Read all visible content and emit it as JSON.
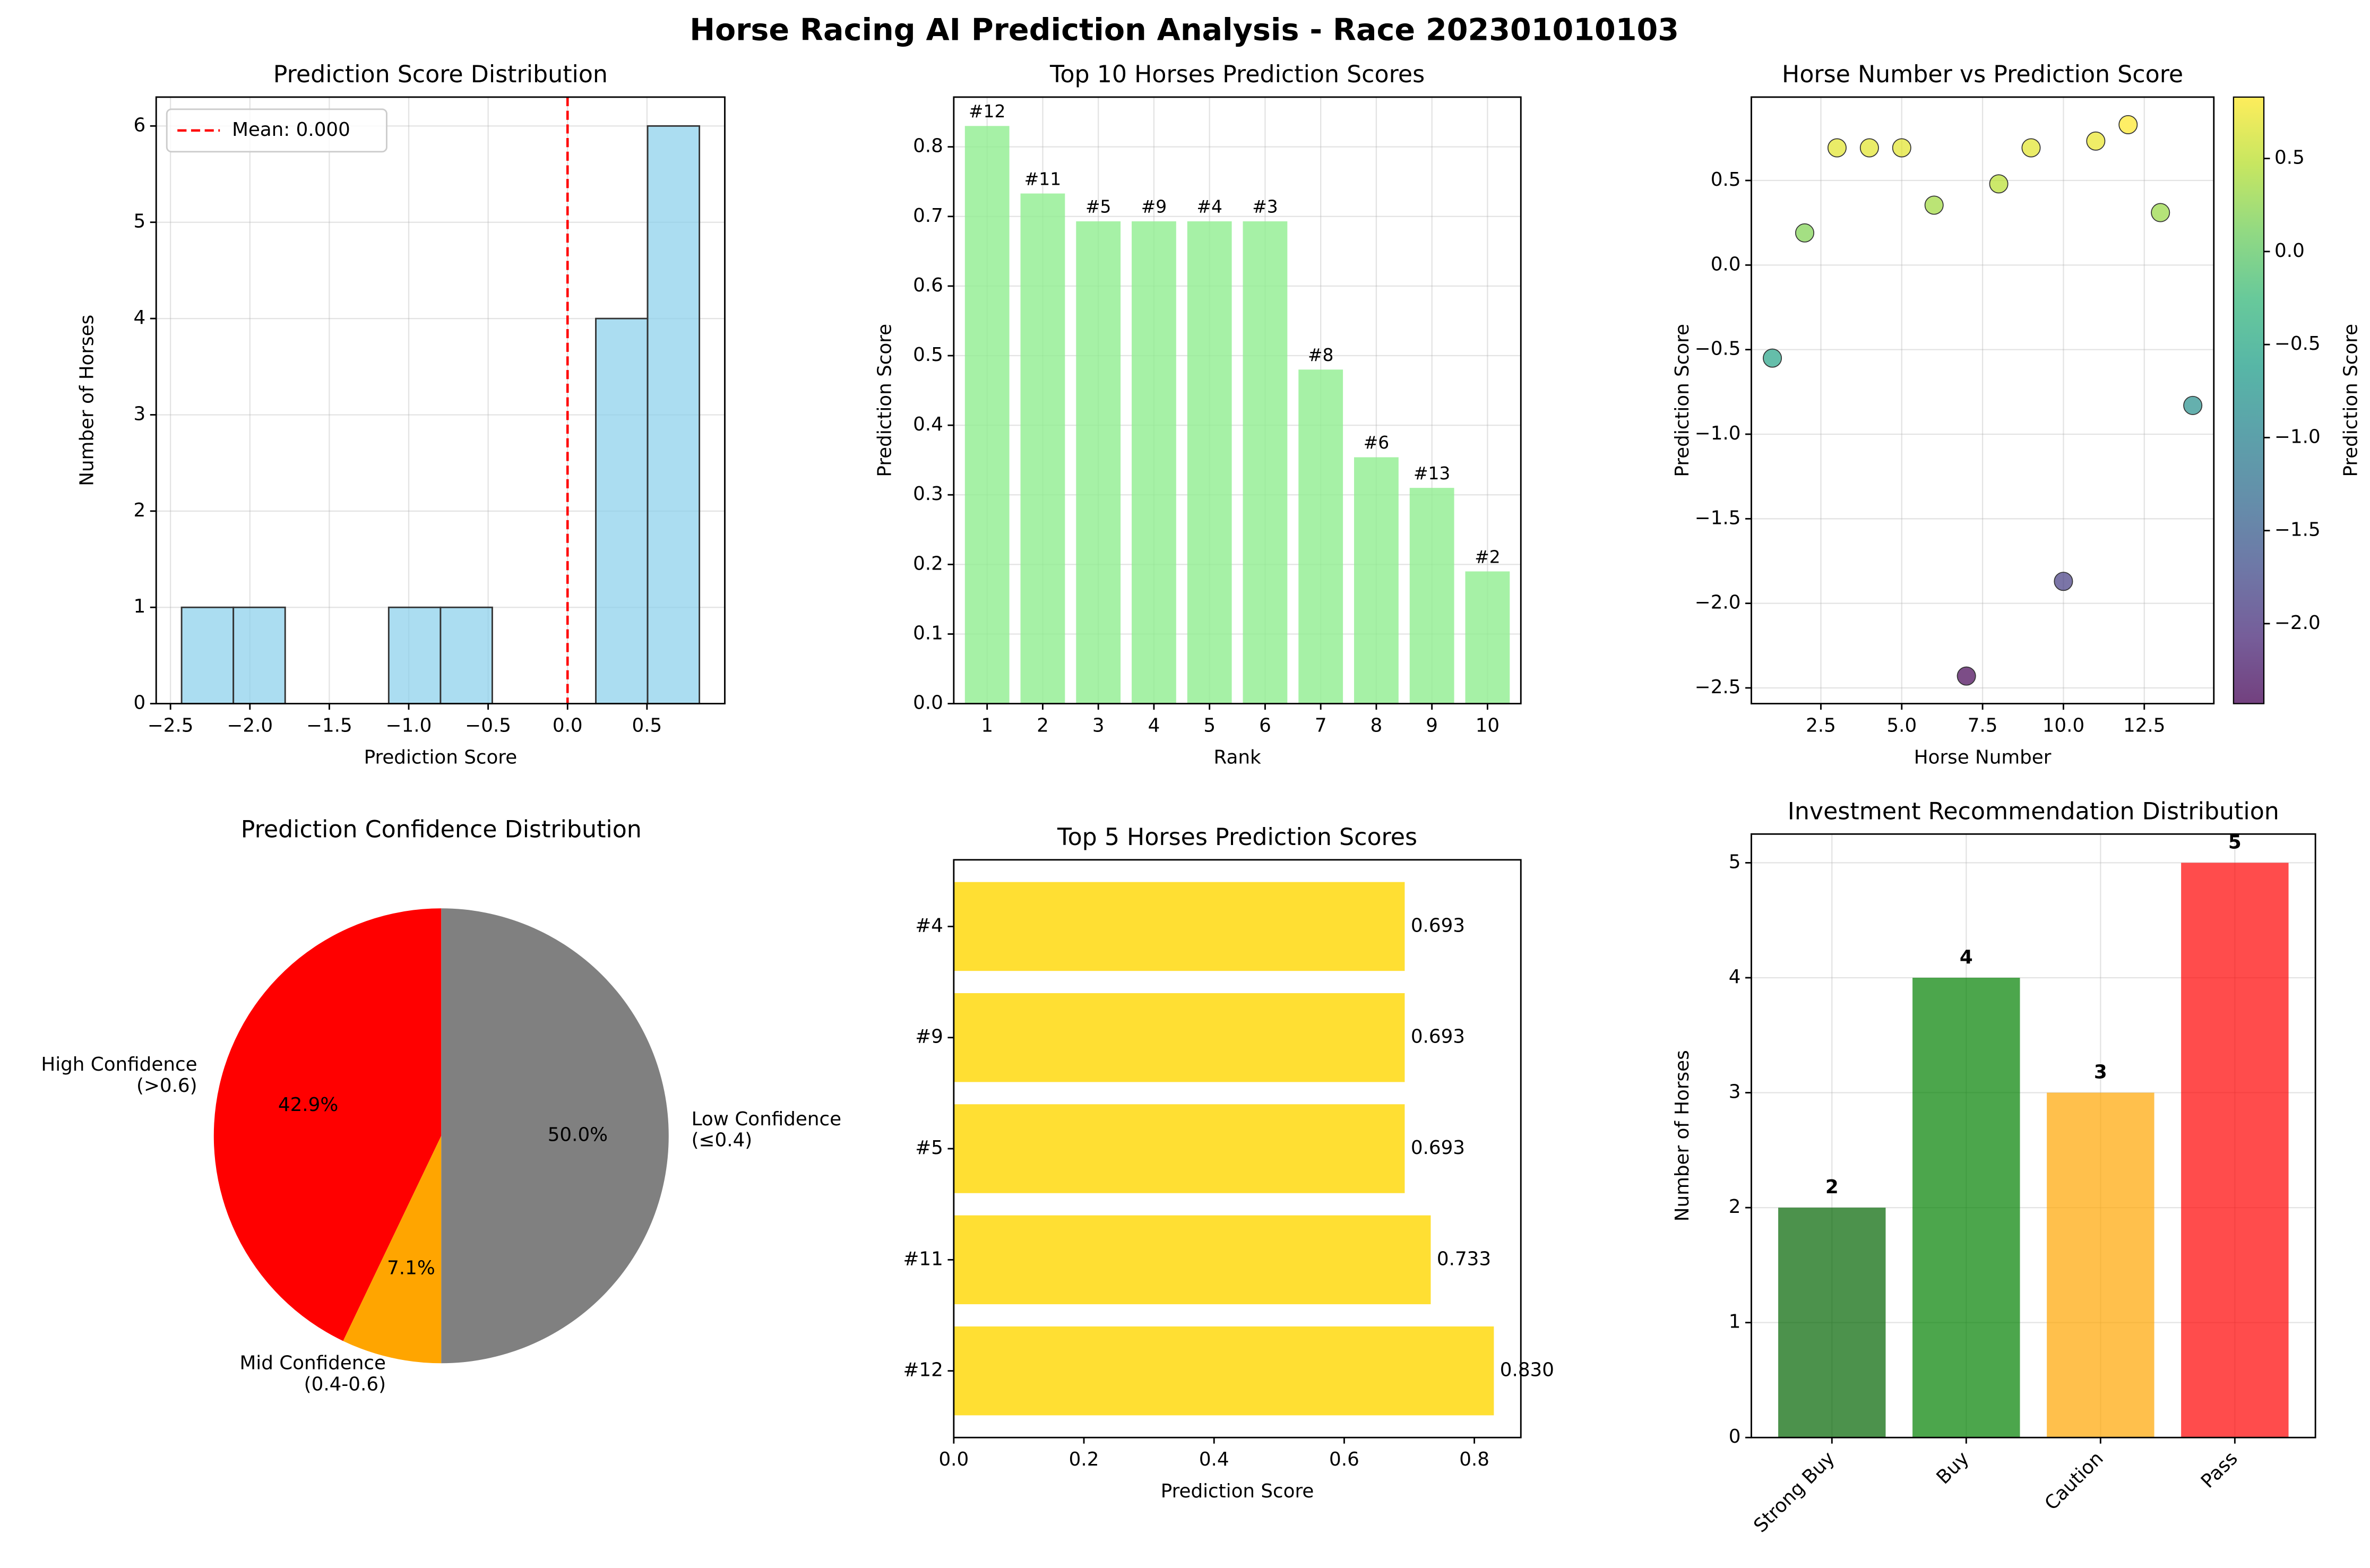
{
  "title": "Horse Racing AI Prediction Analysis - Race 202301010103",
  "chart_data": [
    {
      "type": "histogram",
      "title": "Prediction Score Distribution",
      "xlabel": "Prediction Score",
      "ylabel": "Number of Horses",
      "bins": [
        -2.43,
        -2.104,
        -1.778,
        -1.452,
        -1.126,
        -0.8,
        -0.474,
        -0.148,
        0.178,
        0.504,
        0.83
      ],
      "values": [
        1,
        1,
        0,
        0,
        1,
        1,
        0,
        0,
        4,
        6
      ],
      "color": "#87ceeb",
      "edgecolor": "#333333",
      "mean_line": {
        "value": 0,
        "label": "Mean: 0.000",
        "color": "#ff0000"
      },
      "legend": "upper left",
      "xlim": [
        -2.59,
        0.99
      ],
      "ylim": [
        0,
        6.3
      ],
      "xticks": [
        {
          "value": -2.5,
          "label": "−2.5"
        },
        {
          "value": -2.0,
          "label": "−2.0"
        },
        {
          "value": -1.5,
          "label": "−1.5"
        },
        {
          "value": -1.0,
          "label": "−1.0"
        },
        {
          "value": -0.5,
          "label": "−0.5"
        },
        {
          "value": 0,
          "label": "0.0"
        },
        0.5
      ],
      "yticks": [
        0,
        1,
        2,
        3,
        4,
        5,
        6
      ],
      "grid": true
    },
    {
      "type": "bar",
      "title": "Top 10 Horses Prediction Scores",
      "xlabel": "Rank",
      "ylabel": "Prediction Score",
      "categories": [
        "1",
        "2",
        "3",
        "4",
        "5",
        "6",
        "7",
        "8",
        "9",
        "10"
      ],
      "values": [
        0.83,
        0.733,
        0.693,
        0.693,
        0.693,
        0.693,
        0.48,
        0.354,
        0.31,
        0.19
      ],
      "bar_labels": [
        "#12",
        "#11",
        "#5",
        "#9",
        "#4",
        "#3",
        "#8",
        "#6",
        "#13",
        "#2"
      ],
      "color": "#90ee90",
      "ylim": [
        0,
        0.8715
      ],
      "yticks": [
        {
          "value": 0,
          "label": "0.0"
        },
        0.1,
        0.2,
        0.3,
        0.4,
        0.5,
        0.6,
        0.7,
        0.8
      ],
      "grid": true
    },
    {
      "type": "scatter",
      "title": "Horse Number vs Prediction Score",
      "xlabel": "Horse Number",
      "ylabel": "Prediction Score",
      "x": [
        1,
        2,
        3,
        4,
        5,
        6,
        7,
        8,
        9,
        10,
        11,
        12,
        13,
        14
      ],
      "values": [
        -0.55,
        0.19,
        0.693,
        0.693,
        0.693,
        0.354,
        -2.43,
        0.48,
        0.693,
        -1.87,
        0.733,
        0.83,
        0.31,
        -0.83
      ],
      "xlim": [
        0.35,
        14.65
      ],
      "ylim": [
        -2.593,
        0.993
      ],
      "xticks": [
        2.5,
        {
          "value": 5,
          "label": "5.0"
        },
        7.5,
        {
          "value": 10,
          "label": "10.0"
        },
        12.5
      ],
      "yticks": [
        {
          "value": -2.5,
          "label": "−2.5"
        },
        {
          "value": -2.0,
          "label": "−2.0"
        },
        {
          "value": -1.5,
          "label": "−1.5"
        },
        {
          "value": -1.0,
          "label": "−1.0"
        },
        {
          "value": -0.5,
          "label": "−0.5"
        },
        {
          "value": 0,
          "label": "0.0"
        },
        0.5
      ],
      "grid": true,
      "colorbar": {
        "label": "Prediction Score",
        "colormap": "viridis",
        "lim": [
          -2.43,
          0.83
        ],
        "ticks": [
          {
            "value": -2.0,
            "label": "−2.0"
          },
          {
            "value": -1.5,
            "label": "−1.5"
          },
          {
            "value": -1.0,
            "label": "−1.0"
          },
          {
            "value": -0.5,
            "label": "−0.5"
          },
          {
            "value": 0,
            "label": "0.0"
          },
          0.5
        ]
      }
    },
    {
      "type": "pie",
      "title": "Prediction Confidence Distribution",
      "labels": [
        "High Confidence\n(>0.6)",
        "Mid Confidence\n(0.4-0.6)",
        "Low Confidence\n(≤0.4)"
      ],
      "values": [
        42.9,
        7.1,
        50.0
      ],
      "value_labels": [
        "42.9%",
        "7.1%",
        "50.0%"
      ],
      "colors": [
        "#ff0000",
        "#ffa500",
        "#808080"
      ]
    },
    {
      "type": "hbar",
      "title": "Top 5 Horses Prediction Scores",
      "xlabel": "Prediction Score",
      "categories": [
        "#12",
        "#11",
        "#5",
        "#9",
        "#4"
      ],
      "values": [
        0.83,
        0.733,
        0.693,
        0.693,
        0.693
      ],
      "value_labels": [
        "0.830",
        "0.733",
        "0.693",
        "0.693",
        "0.693"
      ],
      "color": "#ffd700",
      "xlim": [
        0,
        0.8715
      ],
      "xticks": [
        {
          "value": 0,
          "label": "0.0"
        },
        0.2,
        0.4,
        0.6,
        0.8
      ],
      "grid": false
    },
    {
      "type": "bar",
      "title": "Investment Recommendation Distribution",
      "ylabel": "Number of Horses",
      "categories": [
        "Strong Buy",
        "Buy",
        "Caution",
        "Pass"
      ],
      "values": [
        2,
        4,
        3,
        5
      ],
      "colors": [
        "#006400",
        "#008000",
        "#ffa500",
        "#ff0000"
      ],
      "xtick_rotation": 45,
      "ylim": [
        0,
        5.25
      ],
      "yticks": [
        0,
        1,
        2,
        3,
        4,
        5
      ],
      "grid": true,
      "show_values": true
    }
  ]
}
